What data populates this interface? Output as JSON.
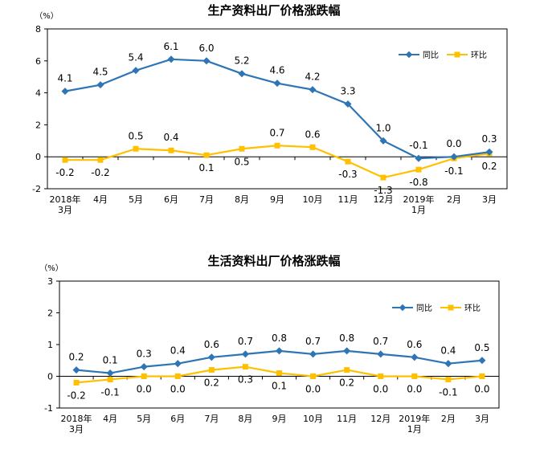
{
  "colors": {
    "yoy": "#2E75B6",
    "mom": "#FFC000",
    "frame": "#000000"
  },
  "chart_data": [
    {
      "type": "line",
      "title": "生产资料出厂价格涨跌幅",
      "unit": "（%）",
      "ylim": [
        -2,
        8
      ],
      "yticks": [
        "8",
        "6",
        "4",
        "2",
        "0",
        "-2"
      ],
      "categories": [
        {
          "l1": "2018年",
          "l2": "3月"
        },
        {
          "l1": "4月",
          "l2": ""
        },
        {
          "l1": "5月",
          "l2": ""
        },
        {
          "l1": "6月",
          "l2": ""
        },
        {
          "l1": "7月",
          "l2": ""
        },
        {
          "l1": "8月",
          "l2": ""
        },
        {
          "l1": "9月",
          "l2": ""
        },
        {
          "l1": "10月",
          "l2": ""
        },
        {
          "l1": "11月",
          "l2": ""
        },
        {
          "l1": "12月",
          "l2": ""
        },
        {
          "l1": "2019年",
          "l2": "1月"
        },
        {
          "l1": "2月",
          "l2": ""
        },
        {
          "l1": "3月",
          "l2": ""
        }
      ],
      "legend": {
        "placement": "top-right",
        "items": [
          "同比",
          "环比"
        ]
      },
      "series": [
        {
          "name": "同比",
          "values": [
            4.1,
            4.5,
            5.4,
            6.1,
            6.0,
            5.2,
            4.6,
            4.2,
            3.3,
            1.0,
            -0.1,
            0.0,
            0.3
          ],
          "labels": [
            "4.1",
            "4.5",
            "5.4",
            "6.1",
            "6.0",
            "5.2",
            "4.6",
            "4.2",
            "3.3",
            "1.0",
            "-0.1",
            "0.0",
            "0.3"
          ]
        },
        {
          "name": "环比",
          "values": [
            -0.2,
            -0.2,
            0.5,
            0.4,
            0.1,
            0.5,
            0.7,
            0.6,
            -0.3,
            -1.3,
            -0.8,
            -0.1,
            0.2
          ],
          "labels": [
            "-0.2",
            "-0.2",
            "0.5",
            "0.4",
            "0.1",
            "0.5",
            "0.7",
            "0.6",
            "-0.3",
            "-1.3",
            "-0.8",
            "-0.1",
            "0.2"
          ]
        }
      ]
    },
    {
      "type": "line",
      "title": "生活资料出厂价格涨跌幅",
      "unit": "（%）",
      "ylim": [
        -1,
        3
      ],
      "yticks": [
        "3",
        "2",
        "1",
        "0",
        "-1"
      ],
      "categories": [
        {
          "l1": "2018年",
          "l2": "3月"
        },
        {
          "l1": "4月",
          "l2": ""
        },
        {
          "l1": "5月",
          "l2": ""
        },
        {
          "l1": "6月",
          "l2": ""
        },
        {
          "l1": "7月",
          "l2": ""
        },
        {
          "l1": "8月",
          "l2": ""
        },
        {
          "l1": "9月",
          "l2": ""
        },
        {
          "l1": "10月",
          "l2": ""
        },
        {
          "l1": "11月",
          "l2": ""
        },
        {
          "l1": "12月",
          "l2": ""
        },
        {
          "l1": "2019年",
          "l2": "1月"
        },
        {
          "l1": "2月",
          "l2": ""
        },
        {
          "l1": "3月",
          "l2": ""
        }
      ],
      "legend": {
        "placement": "top-right",
        "items": [
          "同比",
          "环比"
        ]
      },
      "series": [
        {
          "name": "同比",
          "values": [
            0.2,
            0.1,
            0.3,
            0.4,
            0.6,
            0.7,
            0.8,
            0.7,
            0.8,
            0.7,
            0.6,
            0.4,
            0.5
          ],
          "labels": [
            "0.2",
            "0.1",
            "0.3",
            "0.4",
            "0.6",
            "0.7",
            "0.8",
            "0.7",
            "0.8",
            "0.7",
            "0.6",
            "0.4",
            "0.5"
          ]
        },
        {
          "name": "环比",
          "values": [
            -0.2,
            -0.1,
            0.0,
            0.0,
            0.2,
            0.3,
            0.1,
            0.0,
            0.2,
            0.0,
            0.0,
            -0.1,
            0.0
          ],
          "labels": [
            "-0.2",
            "-0.1",
            "0.0",
            "0.0",
            "0.2",
            "0.3",
            "0.1",
            "0.0",
            "0.2",
            "0.0",
            "0.0",
            "-0.1",
            "0.0"
          ]
        }
      ]
    }
  ]
}
